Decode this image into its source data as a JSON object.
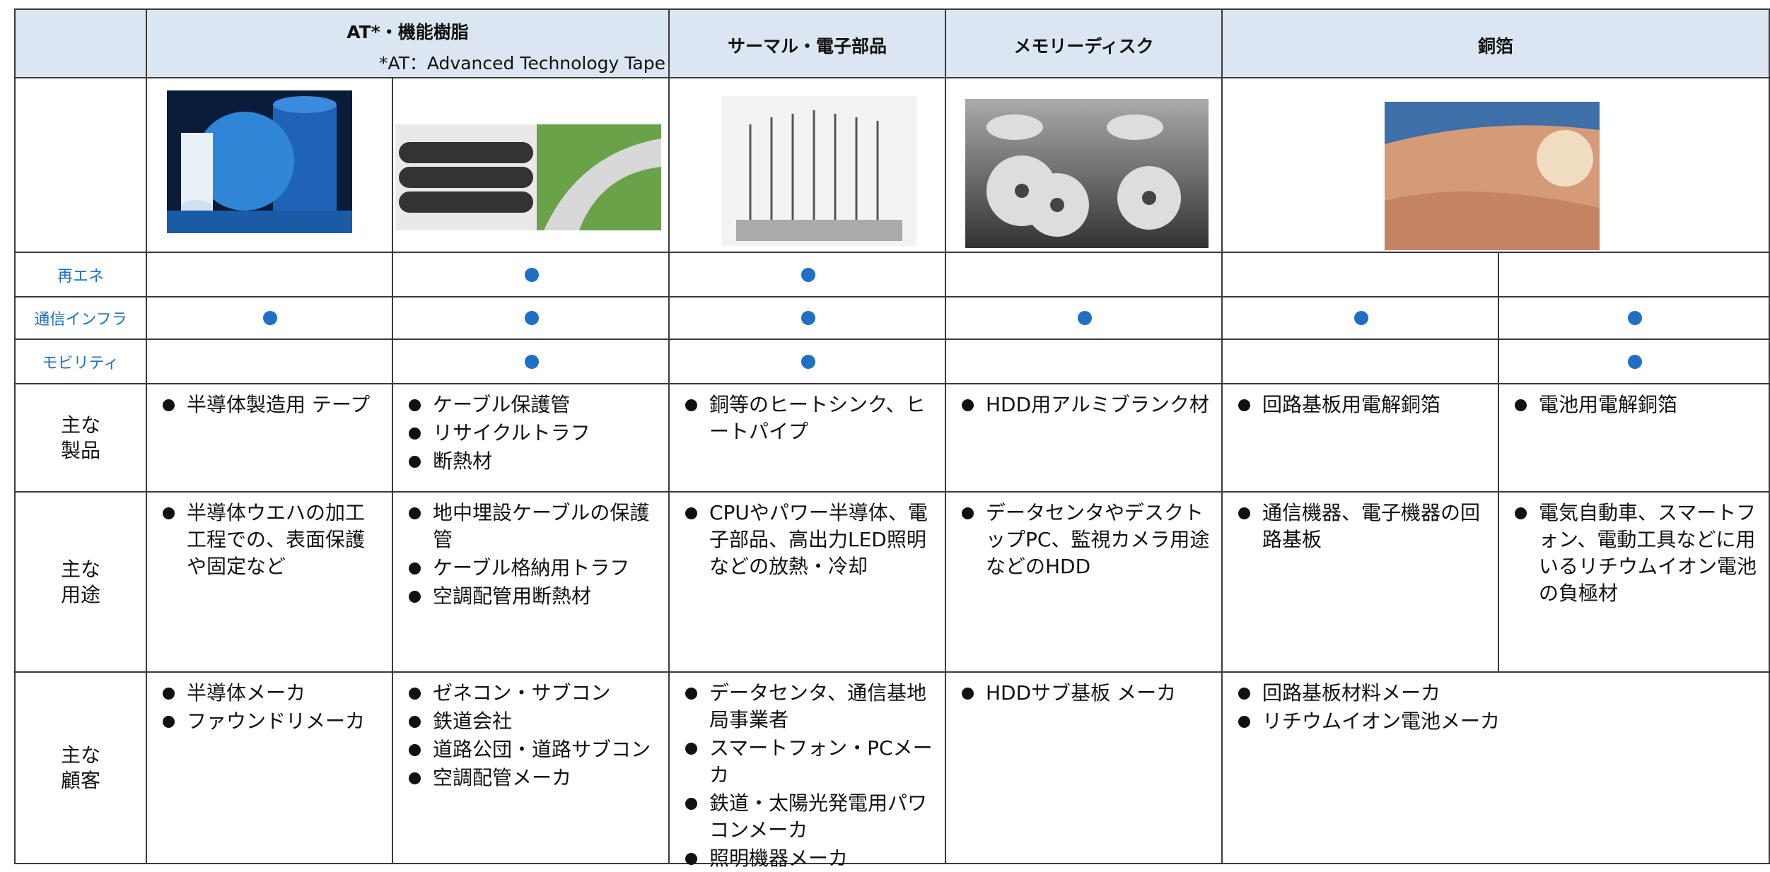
{
  "header": {
    "columns": [
      {
        "title": "AT*・機能樹脂",
        "note": "*AT：Advanced Technology  Tape"
      },
      {
        "title": "サーマル・電子部品"
      },
      {
        "title": "メモリーディスク"
      },
      {
        "title": "銅箔"
      }
    ]
  },
  "applications": [
    {
      "label": "再エネ",
      "marks": [
        false,
        true,
        true,
        false,
        false,
        false
      ]
    },
    {
      "label": "通信インフラ",
      "marks": [
        true,
        true,
        true,
        true,
        true,
        true
      ]
    },
    {
      "label": "モビリティ",
      "marks": [
        false,
        true,
        true,
        false,
        false,
        true
      ]
    }
  ],
  "products": {
    "label": "主な\n製品",
    "cells": [
      [
        "半導体製造用 テープ"
      ],
      [
        "ケーブル保護管",
        "リサイクルトラフ",
        "断熱材"
      ],
      [
        "銅等のヒートシンク、ヒートパイプ"
      ],
      [
        "HDD用アルミブランク材"
      ],
      [
        "回路基板用電解銅箔"
      ],
      [
        "電池用電解銅箔"
      ]
    ]
  },
  "uses": {
    "label": "主な\n用途",
    "cells": [
      [
        "半導体ウエハの加工工程での、表面保護や固定など"
      ],
      [
        "地中埋設ケーブルの保護管",
        "ケーブル格納用トラフ",
        "空調配管用断熱材"
      ],
      [
        "CPUやパワー半導体、電子部品、高出力LED照明などの放熱・冷却"
      ],
      [
        "データセンタやデスクトップPC、監視カメラ用途などのHDD"
      ],
      [
        "通信機器、電子機器の回路基板"
      ],
      [
        "電気自動車、スマートフォン、電動工具などに用いるリチウムイオン電池の負極材"
      ]
    ]
  },
  "customers": {
    "label": "主な\n顧客",
    "cells": [
      [
        "半導体メーカ",
        "ファウンドリメーカ"
      ],
      [
        "ゼネコン・サブコン",
        "鉄道会社",
        "道路公団・道路サブコン",
        "空調配管メーカ"
      ],
      [
        "データセンタ、通信基地局事業者",
        "スマートフォン・PCメーカ",
        "鉄道・太陽光発電用パワコンメーカ",
        "照明機器メーカ"
      ],
      [
        "HDDサブ基板 メーカ"
      ],
      [
        "回路基板材料メーカ",
        "リチウムイオン電池メーカ"
      ]
    ]
  }
}
